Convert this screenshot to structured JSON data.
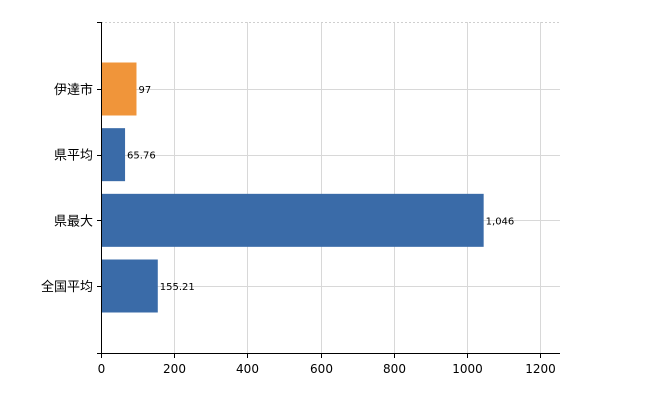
{
  "chart_data": {
    "type": "bar",
    "orientation": "horizontal",
    "categories": [
      "伊達市",
      "県平均",
      "県最大",
      "全国平均"
    ],
    "values": [
      97,
      65.76,
      1046,
      155.21
    ],
    "value_labels": [
      "97",
      "65.76",
      "1,046",
      "155.21"
    ],
    "bar_colors": [
      "#F0953A",
      "#3A6BA8",
      "#3A6BA8",
      "#3A6BA8"
    ],
    "xlim": [
      0,
      1200
    ],
    "xticks": [
      0,
      200,
      400,
      600,
      800,
      1000,
      1200
    ],
    "xtick_labels": [
      "0",
      "200",
      "400",
      "600",
      "800",
      "1000",
      "1200"
    ],
    "grid": true,
    "legend": "none"
  }
}
